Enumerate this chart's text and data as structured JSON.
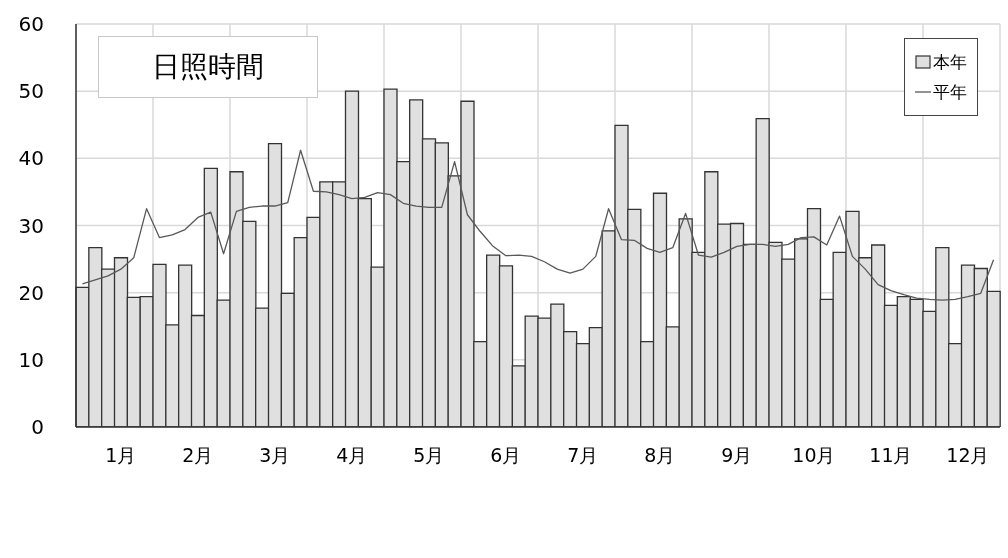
{
  "chart_data": {
    "type": "bar",
    "title": "日照時間",
    "categories": [
      null,
      null,
      null,
      "1月",
      null,
      null,
      null,
      null,
      null,
      "2月",
      null,
      null,
      null,
      null,
      null,
      "3月",
      null,
      null,
      null,
      null,
      null,
      "4月",
      null,
      null,
      null,
      null,
      null,
      "5月",
      null,
      null,
      null,
      null,
      null,
      "6月",
      null,
      null,
      null,
      null,
      null,
      "7月",
      null,
      null,
      null,
      null,
      null,
      "8月",
      null,
      null,
      null,
      null,
      null,
      "9月",
      null,
      null,
      null,
      null,
      null,
      "10月",
      null,
      null,
      null,
      null,
      null,
      "11月",
      null,
      null,
      null,
      null,
      null,
      "12月",
      null,
      null
    ],
    "series": [
      {
        "name": "本年",
        "color": "#e0e0e0",
        "values": [
          20.8,
          26.7,
          23.5,
          25.2,
          19.3,
          19.4,
          24.2,
          15.2,
          24.1,
          16.6,
          38.5,
          18.9,
          38.0,
          30.6,
          17.7,
          42.2,
          19.9,
          28.2,
          31.2,
          36.5,
          36.5,
          50.0,
          34.0,
          23.8,
          50.3,
          39.5,
          48.7,
          42.9,
          42.3,
          37.4,
          48.5,
          12.7,
          25.6,
          24.0,
          9.1,
          16.5,
          16.2,
          18.3,
          14.2,
          12.4,
          14.8,
          29.2,
          44.9,
          32.4,
          12.7,
          34.8,
          14.9,
          31.0,
          26.0,
          38.0,
          30.2,
          30.3,
          27.2,
          45.9,
          27.5,
          25.0,
          28.0,
          32.5,
          19.0,
          26.0,
          32.1,
          25.2,
          27.1,
          18.1,
          19.4,
          19.0,
          17.2,
          26.7,
          12.4,
          24.1,
          23.6,
          20.2
        ]
      },
      {
        "name": "平年",
        "type": "line",
        "color": "#595959",
        "values": [
          21.3,
          21.9,
          22.5,
          23.5,
          25.2,
          32.5,
          28.2,
          28.6,
          29.4,
          31.2,
          32.0,
          25.8,
          32.1,
          32.7,
          32.9,
          32.9,
          33.4,
          41.2,
          35.1,
          35.0,
          34.6,
          34.0,
          34.2,
          34.9,
          34.6,
          33.3,
          32.9,
          32.7,
          32.7,
          39.5,
          31.6,
          29.1,
          26.9,
          25.5,
          25.6,
          25.4,
          24.6,
          23.5,
          22.9,
          23.5,
          25.4,
          32.5,
          27.9,
          27.8,
          26.6,
          26.0,
          26.7,
          31.8,
          25.6,
          25.3,
          26.0,
          26.9,
          27.2,
          27.2,
          26.9,
          27.2,
          28.2,
          28.3,
          27.1,
          31.4,
          25.4,
          23.5,
          21.2,
          20.3,
          19.7,
          19.2,
          19.0,
          18.9,
          19.0,
          19.4,
          19.9,
          24.9
        ]
      }
    ],
    "ylim": [
      0,
      60
    ],
    "yticks": [
      0,
      10,
      20,
      30,
      40,
      50,
      60
    ],
    "grid": true,
    "legend": "top right",
    "marker": "none",
    "line_style": "solid"
  }
}
